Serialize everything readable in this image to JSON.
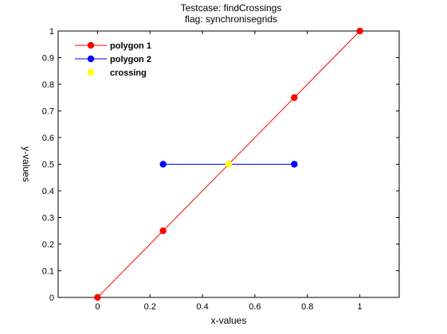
{
  "chart_data": {
    "type": "line",
    "title": [
      "Testcase: findCrossings",
      "flag: synchronisegrids"
    ],
    "xlabel": "x-values",
    "ylabel": "y-values",
    "xlim": [
      -0.15,
      1.15
    ],
    "ylim": [
      0,
      1
    ],
    "xticks": [
      0,
      0.2,
      0.4,
      0.6,
      0.8,
      1
    ],
    "yticks": [
      0,
      0.1,
      0.2,
      0.3,
      0.4,
      0.5,
      0.6,
      0.7,
      0.8,
      0.9,
      1
    ],
    "xtick_labels": [
      "0",
      "0.2",
      "0.4",
      "0.6",
      "0.8",
      "1"
    ],
    "ytick_labels": [
      "0",
      "0.1",
      "0.2",
      "0.3",
      "0.4",
      "0.5",
      "0.6",
      "0.7",
      "0.8",
      "0.9",
      "1"
    ],
    "grid": false,
    "legend_position": "top-left",
    "series": [
      {
        "name": "polygon 1",
        "color": "#ff0000",
        "marker": "circle",
        "line": true,
        "x": [
          0,
          0.25,
          0.75,
          1
        ],
        "y": [
          0,
          0.25,
          0.75,
          1
        ]
      },
      {
        "name": "polygon 2",
        "color": "#0000ff",
        "marker": "circle",
        "line": true,
        "x": [
          0.25,
          0.75
        ],
        "y": [
          0.5,
          0.5
        ]
      },
      {
        "name": "crossing",
        "color": "#ffff00",
        "marker": "circle",
        "line": false,
        "x": [
          0.5
        ],
        "y": [
          0.5
        ]
      }
    ]
  }
}
